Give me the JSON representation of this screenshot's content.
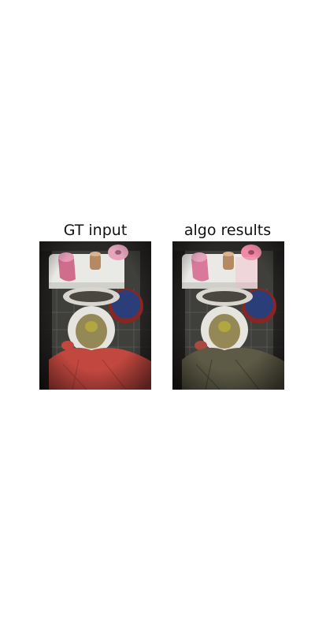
{
  "figure": {
    "panels": [
      {
        "title": "GT input",
        "tint": "#c2473f"
      },
      {
        "title": "algo results",
        "tint": "#5d5a46"
      }
    ]
  },
  "colors": {
    "background": "#ffffff",
    "floor": "#3f3f3c",
    "wall_dark": "#1c1a18",
    "tank": "#e9e9e6",
    "bowl_stain": "#7a6a2a",
    "basin": "#2a3e7a",
    "pink_roll": "#e7a5bd",
    "brown_roll": "#b58a62",
    "pink_cloth": "#d06c8c"
  }
}
